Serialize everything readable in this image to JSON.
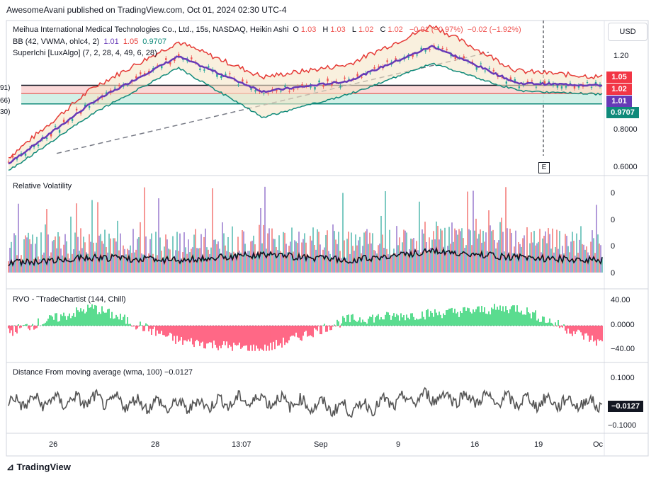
{
  "header": {
    "publisher_line": "AwesomeAvani published on TradingView.com, Oct 01, 2024 02:30 UTC-4"
  },
  "symbol": {
    "name": "Meihua International Medical Technologies Co., Ltd., 15s, NASDAQ, Heikin Ashi",
    "o_label": "O",
    "o_value": "1.03",
    "h_label": "H",
    "h_value": "1.03",
    "l_label": "L",
    "l_value": "1.02",
    "c_label": "C",
    "c_value": "1.02",
    "change": "−0.01 (−0.97%)",
    "change2": "−0.02 (−1.92%)"
  },
  "indicators": {
    "bb_name": "BB (42, VWMA, ohlc4, 2)",
    "bb_v1": "1.01",
    "bb_v2": "1.05",
    "bb_v3": "0.9707",
    "superichi": "SuperIchi [LuxAlgo] (7, 2, 28, 4, 49, 6, 28)"
  },
  "currency_button": "USD",
  "price_axis": {
    "ticks": [
      "1.20",
      "0.8000",
      "0.6000"
    ],
    "badge_upper": "1.05",
    "badge_price": "1.02",
    "badge_basis": "1.01",
    "badge_lower": "0.9707"
  },
  "left_cut_labels": [
    "91)",
    "66)",
    "30)"
  ],
  "panels": {
    "rv_name": "Relative Volatility",
    "rv_ticks": [
      "0",
      "0",
      "0",
      "0"
    ],
    "rvo_name": "RVO - ˜TradeChartist (144, Chill)",
    "rvo_ticks": [
      "40.00",
      "0.0000",
      "−40.00"
    ],
    "dma_name": "Distance From moving average (wma, 100)",
    "dma_value": "−0.0127",
    "dma_ticks": [
      "0.1000",
      "−0.1000"
    ],
    "dma_badge": "−0.0127"
  },
  "x_axis": [
    "26",
    "28",
    "13:07",
    "Sep",
    "9",
    "16",
    "19",
    "Oc"
  ],
  "event_marker": "E",
  "footer": "TradingView",
  "colors": {
    "bb_upper": "#e53935",
    "bb_basis": "#673ab7",
    "bb_lower": "#0f8a7a",
    "up": "#26a69a",
    "down": "#ef5350",
    "rvo_up": "#00c853",
    "rvo_down": "#ff1744",
    "dma_line": "#555555"
  },
  "chart_data": [
    {
      "type": "line",
      "title": "Meihua International Medical Technologies Co., Ltd., 15s, NASDAQ, Heikin Ashi",
      "x": [
        "26",
        "28",
        "13:07",
        "Sep",
        "9",
        "16",
        "19",
        "Oc"
      ],
      "series": [
        {
          "name": "BB upper",
          "values": [
            0.66,
            1.0,
            1.22,
            1.05,
            1.11,
            1.3,
            1.08,
            1.05
          ]
        },
        {
          "name": "BB basis",
          "values": [
            0.63,
            0.93,
            1.15,
            0.98,
            1.03,
            1.2,
            1.02,
            1.01
          ]
        },
        {
          "name": "BB lower",
          "values": [
            0.6,
            0.88,
            1.1,
            0.86,
            0.97,
            1.12,
            0.99,
            0.9707
          ]
        }
      ],
      "ylim": [
        0.6,
        1.3
      ],
      "horizontal_levels": [
        1.01,
        0.97,
        0.92
      ]
    },
    {
      "type": "bar",
      "title": "Relative Volatility",
      "x": [
        "26",
        "28",
        "13:07",
        "Sep",
        "9",
        "16",
        "19",
        "Oc"
      ],
      "values": [
        0.3,
        0.5,
        0.4,
        0.6,
        0.4,
        0.7,
        0.5,
        0.4
      ]
    },
    {
      "type": "area",
      "title": "RVO - ˜TradeChartist (144, Chill)",
      "x": [
        "26",
        "28",
        "13:07",
        "Sep",
        "9",
        "16",
        "19",
        "Oc"
      ],
      "values": [
        -10,
        30,
        -25,
        -40,
        10,
        20,
        30,
        -30
      ],
      "ylim": [
        -45,
        45
      ]
    },
    {
      "type": "line",
      "title": "Distance From moving average (wma, 100)",
      "x": [
        "26",
        "28",
        "13:07",
        "Sep",
        "9",
        "16",
        "19",
        "Oc"
      ],
      "values": [
        0.0,
        0.02,
        -0.04,
        0.03,
        -0.07,
        0.06,
        0.01,
        -0.0127
      ],
      "ylim": [
        -0.11,
        0.11
      ]
    }
  ]
}
